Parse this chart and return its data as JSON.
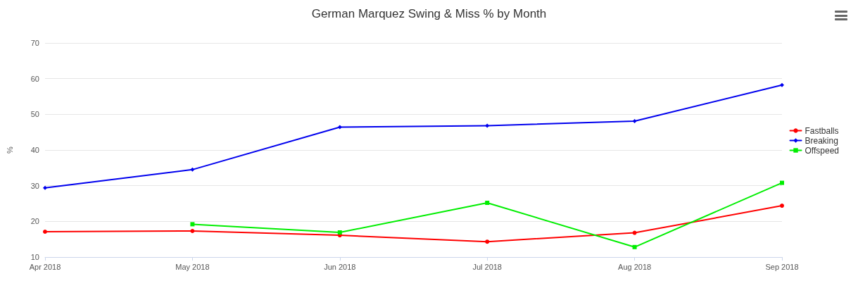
{
  "chart_data": {
    "type": "line",
    "title": "German Marquez Swing & Miss % by Month",
    "ylabel": "%",
    "categories": [
      "Apr 2018",
      "May 2018",
      "Jun 2018",
      "Jul 2018",
      "Aug 2018",
      "Sep 2018"
    ],
    "series": [
      {
        "name": "Fastballs",
        "color": "#ff0000",
        "marker": "circle",
        "values": [
          17.1,
          17.3,
          16.1,
          14.3,
          16.8,
          24.4
        ]
      },
      {
        "name": "Breaking",
        "color": "#0000ee",
        "marker": "diamond",
        "values": [
          29.4,
          34.5,
          46.4,
          46.8,
          48.1,
          58.2
        ]
      },
      {
        "name": "Offspeed",
        "color": "#00ee00",
        "marker": "square",
        "values": [
          null,
          19.2,
          16.9,
          25.2,
          12.8,
          30.8
        ]
      }
    ],
    "ylim": [
      10,
      70
    ],
    "yticks": [
      10,
      20,
      30,
      40,
      50,
      60,
      70
    ],
    "grid": "y",
    "legend": "right",
    "line_style": "solid"
  }
}
